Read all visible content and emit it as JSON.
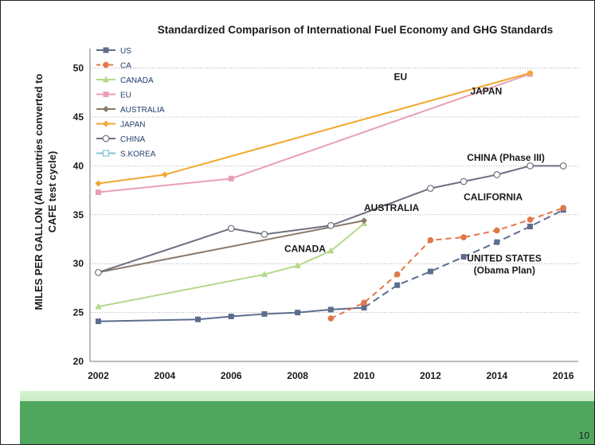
{
  "slide": {
    "page_number": "10"
  },
  "chart_data": {
    "type": "line",
    "title": "Standardized Comparison of International Fuel Economy and GHG Standards",
    "ylabel_line1": "MILES PER GALLON (All countries converted to",
    "ylabel_line2": "CAFE test cycle)",
    "xlabel": "",
    "xlim": [
      2001.75,
      2016.45
    ],
    "ylim": [
      20,
      52
    ],
    "x_ticks": [
      2002,
      2004,
      2006,
      2008,
      2010,
      2012,
      2014,
      2016
    ],
    "y_ticks": [
      20,
      25,
      30,
      35,
      40,
      45,
      50
    ],
    "gridlines": [
      25,
      30,
      35,
      40,
      45,
      50
    ],
    "legend_position": "top-left",
    "series": [
      {
        "name": "US",
        "color": "#5d6d8e",
        "marker": "square",
        "dash": "",
        "dash_from": 2010,
        "points": [
          [
            2002,
            24.1
          ],
          [
            2005,
            24.3
          ],
          [
            2006,
            24.6
          ],
          [
            2007,
            24.85
          ],
          [
            2008,
            25.0
          ],
          [
            2009,
            25.3
          ],
          [
            2010,
            25.5
          ],
          [
            2011,
            27.8
          ],
          [
            2012,
            29.2
          ],
          [
            2013,
            30.7
          ],
          [
            2014,
            32.2
          ],
          [
            2015,
            33.8
          ],
          [
            2016,
            35.5
          ]
        ]
      },
      {
        "name": "CA",
        "color": "#e0784a",
        "marker": "circle",
        "dash": "7,5",
        "points": [
          [
            2009,
            24.4
          ],
          [
            2010,
            26.0
          ],
          [
            2011,
            28.9
          ],
          [
            2012,
            32.4
          ],
          [
            2013,
            32.7
          ],
          [
            2014,
            33.4
          ],
          [
            2015,
            34.5
          ],
          [
            2016,
            35.7
          ]
        ]
      },
      {
        "name": "CANADA",
        "color": "#b5d88a",
        "marker": "triangle",
        "dash": "",
        "points": [
          [
            2002,
            25.6
          ],
          [
            2007,
            28.9
          ],
          [
            2008,
            29.8
          ],
          [
            2009,
            31.3
          ],
          [
            2010,
            34.1
          ]
        ]
      },
      {
        "name": "EU",
        "color": "#e8a0b4",
        "marker": "square",
        "dash": "",
        "points": [
          [
            2002,
            37.3
          ],
          [
            2006,
            38.7
          ],
          [
            2015,
            49.4
          ]
        ]
      },
      {
        "name": "AUSTRALIA",
        "color": "#8a7a6a",
        "marker": "diamond",
        "dash": "",
        "points": [
          [
            2002,
            29.1
          ],
          [
            2010,
            34.4
          ]
        ]
      },
      {
        "name": "JAPAN",
        "color": "#f0a830",
        "marker": "diamond",
        "dash": "",
        "points": [
          [
            2002,
            38.2
          ],
          [
            2004,
            39.1
          ],
          [
            2015,
            49.5
          ]
        ]
      },
      {
        "name": "CHINA",
        "color": "#6f6f80",
        "marker": "open-circle",
        "dash": "",
        "points": [
          [
            2002,
            29.1
          ],
          [
            2006,
            33.6
          ],
          [
            2007,
            33.0
          ],
          [
            2009,
            33.9
          ],
          [
            2012,
            37.7
          ],
          [
            2013,
            38.4
          ],
          [
            2014,
            39.1
          ],
          [
            2015,
            40.0
          ],
          [
            2016,
            40.0
          ]
        ]
      },
      {
        "name": "S.KOREA",
        "color": "#7fc4d8",
        "marker": "open-square",
        "dash": "",
        "points": []
      }
    ],
    "annotations": [
      {
        "text": "EU",
        "x": 2010.9,
        "y": 48.8
      },
      {
        "text": "JAPAN",
        "x": 2013.2,
        "y": 47.3
      },
      {
        "text": "CHINA (Phase III)",
        "x": 2013.1,
        "y": 40.5
      },
      {
        "text": "CALIFORNIA",
        "x": 2013.0,
        "y": 36.5
      },
      {
        "text": "AUSTRALIA",
        "x": 2010.0,
        "y": 35.4
      },
      {
        "text": "CANADA",
        "x": 2007.6,
        "y": 31.2
      },
      {
        "text": "UNITED STATES",
        "x": 2013.1,
        "y": 30.2
      },
      {
        "text": "(Obama Plan)",
        "x": 2013.3,
        "y": 29.0
      }
    ]
  }
}
